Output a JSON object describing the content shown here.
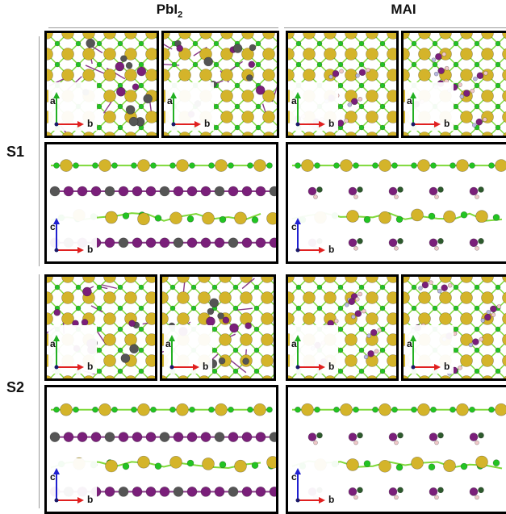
{
  "columns": {
    "pbi2": {
      "label_main": "PbI",
      "label_sub": "2"
    },
    "mai": {
      "label": "MAI"
    }
  },
  "rows": [
    {
      "label": "S1"
    },
    {
      "label": "S2"
    }
  ],
  "axes": {
    "top_view": {
      "vertical": "a",
      "horizontal": "b"
    },
    "side_view": {
      "vertical": "c",
      "horizontal": "b"
    }
  },
  "colors": {
    "pb": "#555555",
    "i": "#7a1f7a",
    "cl": "#22c422",
    "au": "#d4b42a",
    "c": "#2d5a2d",
    "n": "#b8b8e0",
    "h": "#f0c8c8",
    "bond_green": "#7fd93a",
    "bond_purple": "#8a3a8a",
    "axis_red": "#e02020",
    "axis_green": "#22b022",
    "axis_blue": "#2020d0"
  }
}
